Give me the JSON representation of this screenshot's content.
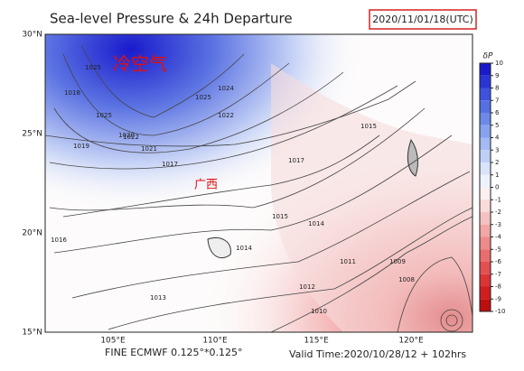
{
  "header": {
    "title": "Sea-level Pressure & 24h Departure",
    "date": "2020/11/01/18(UTC)"
  },
  "map": {
    "latitudes": [
      "30°N",
      "25°N",
      "20°N",
      "15°N"
    ],
    "longitudes": [
      "105°E",
      "110°E",
      "115°E",
      "120°E"
    ],
    "annotations": [
      "冷空气",
      "广西"
    ],
    "isobar_labels": [
      "1025",
      "1025",
      "1024",
      "1025",
      "1022",
      "1022",
      "1021",
      "1020",
      "1019",
      "1018",
      "1017",
      "1017",
      "1016",
      "1015",
      "1015",
      "1014",
      "1014",
      "1013",
      "1012",
      "1011",
      "1010",
      "1009",
      "1008"
    ]
  },
  "colorbar": {
    "label": "δP",
    "ticks": [
      10,
      9,
      8,
      7,
      6,
      5,
      4,
      3,
      2,
      1,
      0,
      -1,
      -2,
      -3,
      -4,
      -5,
      -6,
      -7,
      -8,
      -9,
      -10
    ],
    "colors": [
      "#1a1acc",
      "#2a35d6",
      "#3d52de",
      "#5470e4",
      "#6d8ae9",
      "#88a3ee",
      "#a3baf2",
      "#bfd0f6",
      "#d9e3fa",
      "#eef2fc",
      "#fcefef",
      "#fadada",
      "#f6c1c1",
      "#f2a6a6",
      "#ee8a8a",
      "#ea6d6d",
      "#e45050",
      "#dc3434",
      "#d01e1e",
      "#bd0e0e"
    ]
  },
  "footer": {
    "left": "FINE ECMWF 0.125°*0.125°",
    "right": "Valid Time:2020/10/28/12 + 102hrs"
  }
}
